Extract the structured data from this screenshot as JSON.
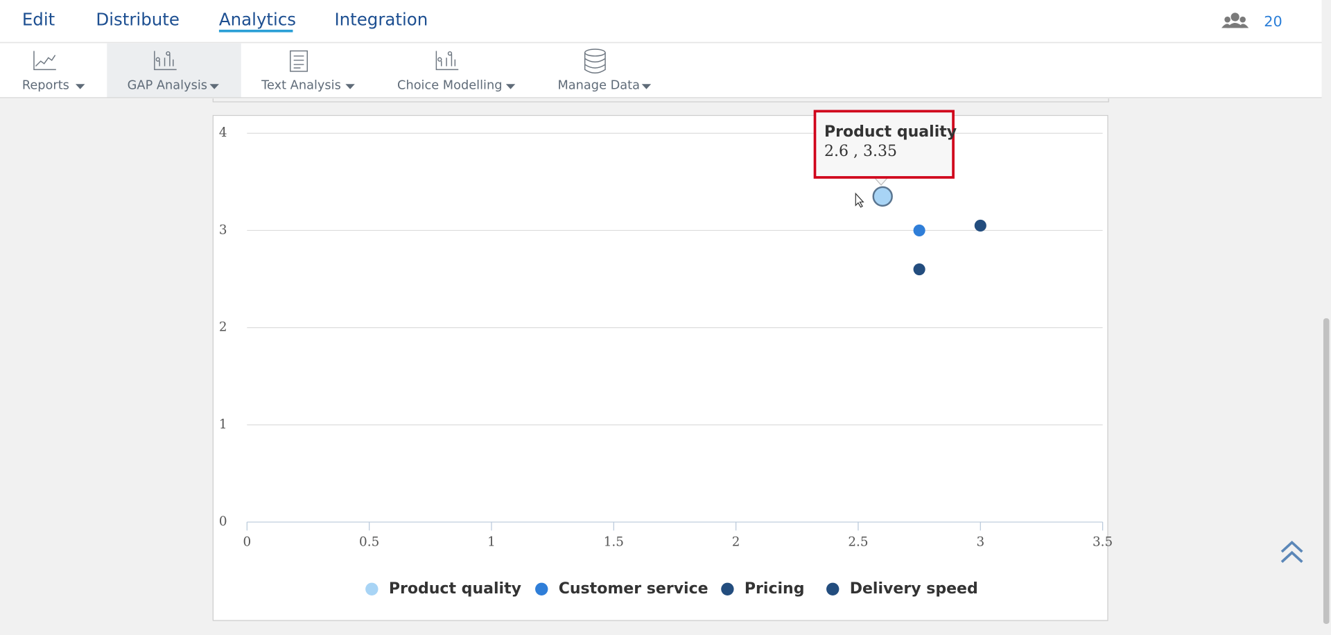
{
  "nav": {
    "tabs": [
      "Edit",
      "Distribute",
      "Analytics",
      "Integration"
    ],
    "user_count": "20"
  },
  "toolbar": {
    "items": [
      "Reports",
      "GAP Analysis",
      "Text Analysis",
      "Choice Modelling",
      "Manage Data"
    ]
  },
  "tooltip": {
    "title": "Product quality",
    "text": "2.6 , 3.35"
  },
  "chart_data": {
    "type": "scatter",
    "series": [
      {
        "name": "Product quality",
        "color": "#a8d4f5",
        "x": [
          2.6
        ],
        "values": [
          3.35
        ]
      },
      {
        "name": "Customer service",
        "color": "#2f7ed8",
        "x": [
          2.75
        ],
        "values": [
          3.0
        ]
      },
      {
        "name": "Pricing",
        "color": "#234d7e",
        "x": [
          2.75
        ],
        "values": [
          2.6
        ]
      },
      {
        "name": "Delivery speed",
        "color": "#234d7e",
        "x": [
          3.0
        ],
        "values": [
          3.05
        ]
      }
    ],
    "xlim": [
      0,
      3.5
    ],
    "xticks": [
      0,
      0.5,
      1,
      1.5,
      2,
      2.5,
      3,
      3.5
    ],
    "ylim": [
      0,
      4
    ],
    "yticks": [
      0,
      1,
      2,
      3,
      4
    ],
    "grid": true
  }
}
